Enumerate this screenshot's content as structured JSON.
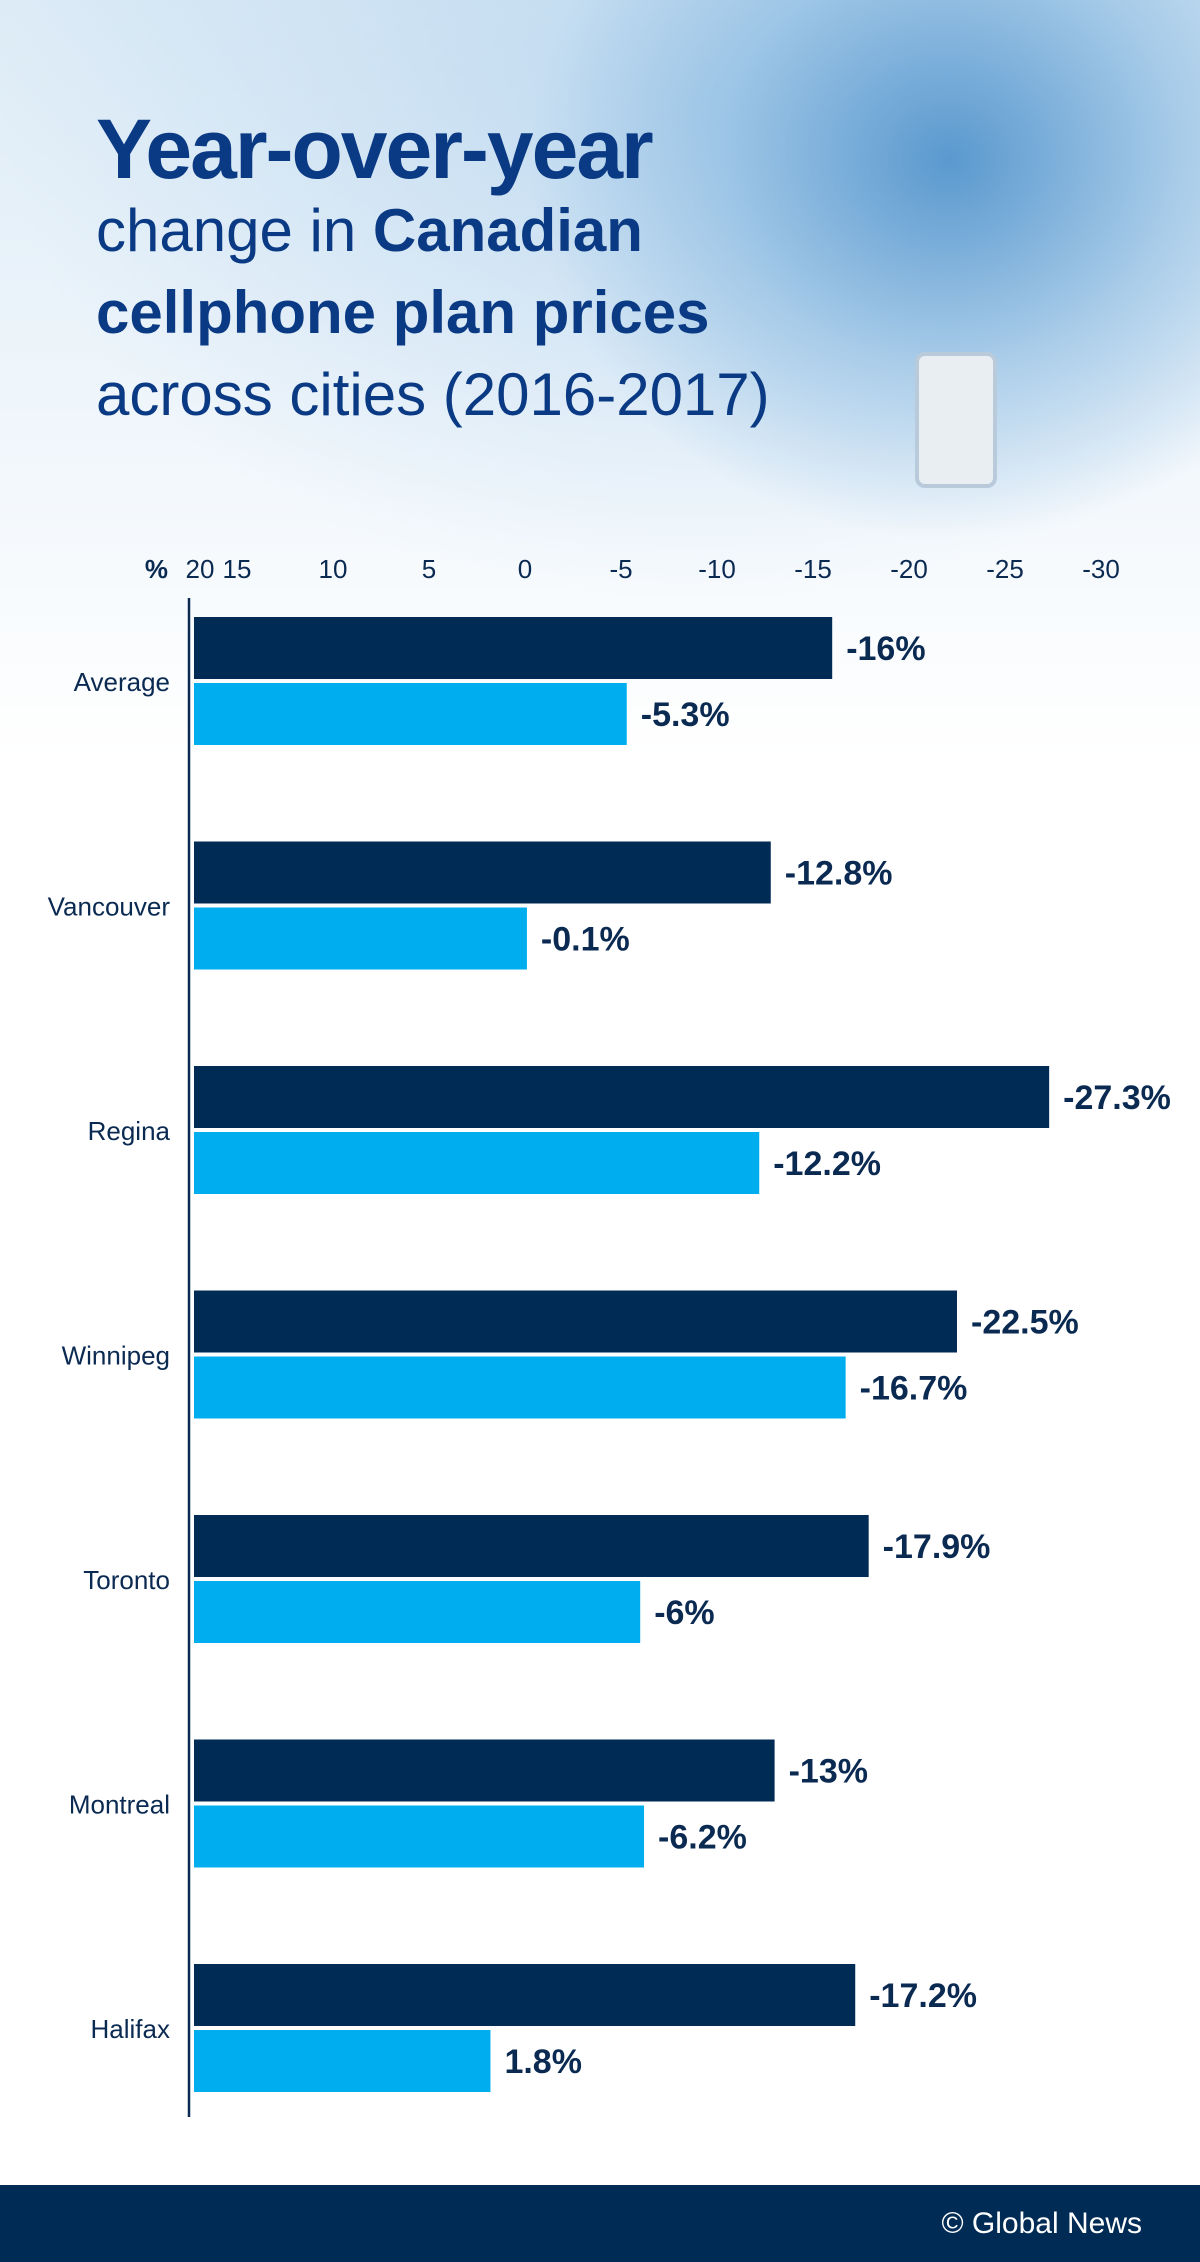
{
  "title": {
    "line1": "Year-over-year",
    "line2_light": "change in ",
    "line2_bold": "Canadian",
    "line3": "cellphone plan prices",
    "line4": "across cities (2016-2017)"
  },
  "footer": {
    "credit": "© Global News"
  },
  "chart_data": {
    "type": "bar",
    "orientation": "horizontal",
    "title": "Year-over-year change in Canadian cellphone plan prices across cities (2016-2017)",
    "unit_label": "%",
    "xticks": [
      "20",
      "15",
      "10",
      "5",
      "0",
      "-5",
      "-10",
      "-15",
      "-20",
      "-25",
      "-30"
    ],
    "xlim": [
      20,
      -30
    ],
    "categories": [
      "Average",
      "Vancouver",
      "Regina",
      "Winnipeg",
      "Toronto",
      "Montreal",
      "Halifax"
    ],
    "series": [
      {
        "color": "#002b55",
        "values": [
          -16,
          -12.8,
          -27.3,
          -22.5,
          -17.9,
          -13,
          -17.2
        ],
        "labels": [
          "-16%",
          "-12.8%",
          "-27.3%",
          "-22.5%",
          "-17.9%",
          "-13%",
          "-17.2%"
        ]
      },
      {
        "color": "#00aeef",
        "values": [
          -5.3,
          -0.1,
          -12.2,
          -16.7,
          -6,
          -6.2,
          1.8
        ],
        "labels": [
          "-5.3%",
          "-0.1%",
          "-12.2%",
          "-16.7%",
          "-6%",
          "-6.2%",
          "1.8%"
        ]
      }
    ],
    "grid": false,
    "legend": "none"
  }
}
